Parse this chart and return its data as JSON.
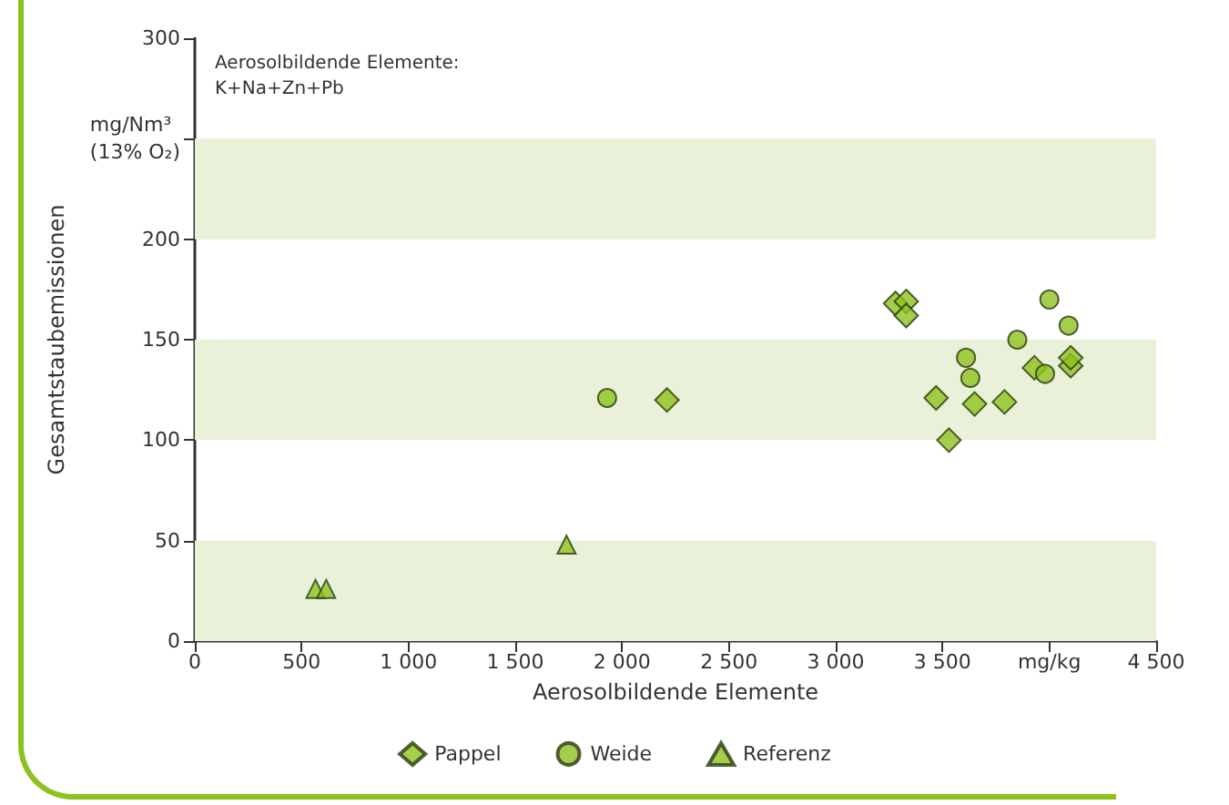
{
  "chart_data": {
    "type": "scatter",
    "xlabel": "Aerosolbildende Elemente",
    "ylabel": "Gesamtstaubemissionen",
    "annotations": [
      "Aerosolbildende Elemente:\nK+Na+Zn+Pb",
      "mg/Nm³\n(13% O₂)"
    ],
    "xlim": [
      0,
      4500
    ],
    "xticks": [
      0,
      500,
      {
        "value": 1000,
        "label": "1 000"
      },
      {
        "value": 1500,
        "label": "1 500"
      },
      {
        "value": 2000,
        "label": "2 000"
      },
      {
        "value": 2500,
        "label": "2 500"
      },
      {
        "value": 3000,
        "label": "3 000"
      },
      {
        "value": 3500,
        "label": "3 500"
      },
      {
        "value": 4000,
        "label": "mg/kg"
      },
      {
        "value": 4500,
        "label": "4 500"
      }
    ],
    "ylim": [
      0,
      300
    ],
    "yticks": [
      0,
      50,
      100,
      150,
      200,
      {
        "value": 250,
        "label": null
      },
      300
    ],
    "bands": [
      {
        "axis": "y",
        "from": 0,
        "to": 50,
        "color": "#e9f2d8"
      },
      {
        "axis": "y",
        "from": 100,
        "to": 150,
        "color": "#e9f2d8"
      },
      {
        "axis": "y",
        "from": 200,
        "to": 250,
        "color": "#e9f2d8"
      }
    ],
    "grid": false,
    "legend": "bottom",
    "series": [
      {
        "name": "Pappel",
        "color": "#8dc21f",
        "marker": "diamond",
        "x": [
          2210,
          3280,
          3330,
          3330,
          3470,
          3530,
          3650,
          3790,
          3930,
          4100,
          4100
        ],
        "values": [
          120,
          168,
          169,
          162,
          121,
          100,
          118,
          119,
          136,
          137,
          141
        ]
      },
      {
        "name": "Weide",
        "color": "#8dc21f",
        "marker": "circle",
        "x": [
          1930,
          3610,
          3630,
          3850,
          4000,
          4090,
          3980
        ],
        "values": [
          121,
          141,
          131,
          150,
          170,
          157,
          133
        ]
      },
      {
        "name": "Referenz",
        "color": "#8dc21f",
        "marker": "triangle",
        "x": [
          565,
          615,
          1740
        ],
        "values": [
          26,
          26,
          48
        ]
      }
    ]
  }
}
